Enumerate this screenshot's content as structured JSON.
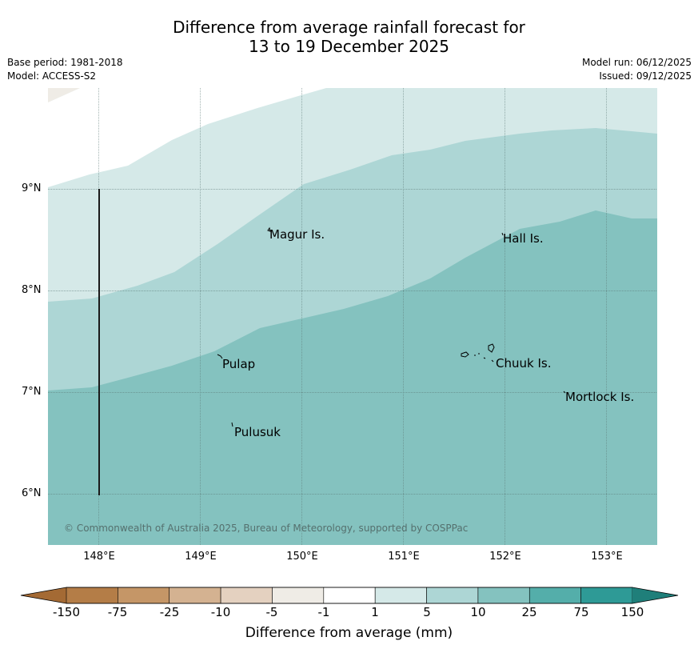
{
  "title": {
    "line1": "Difference from average rainfall forecast for",
    "line2": "13 to 19 December 2025"
  },
  "meta": {
    "base_period": "Base period: 1981-2018",
    "model": "Model: ACCESS-S2",
    "model_run": "Model run: 06/12/2025",
    "issued": "Issued: 09/12/2025"
  },
  "axes": {
    "latitude_labels": [
      "9°N",
      "8°N",
      "7°N",
      "6°N"
    ],
    "longitude_labels": [
      "148°E",
      "149°E",
      "150°E",
      "151°E",
      "152°E",
      "153°E"
    ]
  },
  "places": [
    {
      "name": "Magur Is."
    },
    {
      "name": "Hall Is."
    },
    {
      "name": "Pulap"
    },
    {
      "name": "Chuuk Is."
    },
    {
      "name": "Mortlock Is."
    },
    {
      "name": "Pulusuk"
    }
  ],
  "copyright": "© Commonwealth of Australia 2025, Bureau of Meteorology, supported by COSPPac",
  "legend": {
    "ticks": [
      "-150",
      "-75",
      "-25",
      "-10",
      "-5",
      "-1",
      "1",
      "5",
      "10",
      "25",
      "75",
      "150"
    ],
    "colors": [
      "#a46a34",
      "#b47d47",
      "#c59667",
      "#d4b291",
      "#e4d1c0",
      "#efece6",
      "#ffffff",
      "#d5e9e8",
      "#add6d5",
      "#84c2bf",
      "#54aeaa",
      "#2e9a96",
      "#1f7f7a"
    ],
    "label": "Difference from average (mm)"
  }
}
